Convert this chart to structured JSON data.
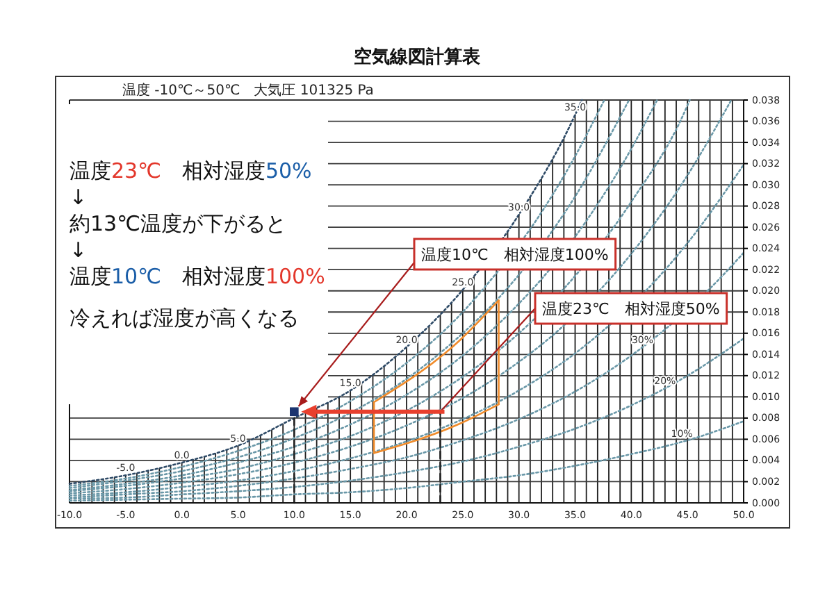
{
  "chart_data": {
    "type": "line",
    "title": "空気線図計算表",
    "subtitle": "温度 -10℃～50℃　大気圧 101325 Pa",
    "xlim": [
      -10,
      50
    ],
    "xticks": [
      {
        "value": -10,
        "label": "-10.0"
      },
      {
        "value": -9,
        "label": null
      },
      {
        "value": -8,
        "label": null
      },
      {
        "value": -7,
        "label": null
      },
      {
        "value": -6,
        "label": null
      },
      {
        "value": -5,
        "label": "-5.0"
      },
      {
        "value": -4,
        "label": null
      },
      {
        "value": -3,
        "label": null
      },
      {
        "value": -2,
        "label": null
      },
      {
        "value": -1,
        "label": null
      },
      {
        "value": 0,
        "label": "0.0"
      },
      {
        "value": 1,
        "label": null
      },
      {
        "value": 2,
        "label": null
      },
      {
        "value": 3,
        "label": null
      },
      {
        "value": 4,
        "label": null
      },
      {
        "value": 5,
        "label": "5.0"
      },
      {
        "value": 6,
        "label": null
      },
      {
        "value": 7,
        "label": null
      },
      {
        "value": 8,
        "label": null
      },
      {
        "value": 9,
        "label": null
      },
      {
        "value": 10,
        "label": "10.0"
      },
      {
        "value": 11,
        "label": null
      },
      {
        "value": 12,
        "label": null
      },
      {
        "value": 13,
        "label": null
      },
      {
        "value": 14,
        "label": null
      },
      {
        "value": 15,
        "label": "15.0"
      },
      {
        "value": 16,
        "label": null
      },
      {
        "value": 17,
        "label": null
      },
      {
        "value": 18,
        "label": null
      },
      {
        "value": 19,
        "label": null
      },
      {
        "value": 20,
        "label": "20.0"
      },
      {
        "value": 21,
        "label": null
      },
      {
        "value": 22,
        "label": null
      },
      {
        "value": 23,
        "label": null
      },
      {
        "value": 24,
        "label": null
      },
      {
        "value": 25,
        "label": "25.0"
      },
      {
        "value": 26,
        "label": null
      },
      {
        "value": 27,
        "label": null
      },
      {
        "value": 28,
        "label": null
      },
      {
        "value": 29,
        "label": null
      },
      {
        "value": 30,
        "label": "30.0"
      },
      {
        "value": 31,
        "label": null
      },
      {
        "value": 32,
        "label": null
      },
      {
        "value": 33,
        "label": null
      },
      {
        "value": 34,
        "label": null
      },
      {
        "value": 35,
        "label": "35.0"
      },
      {
        "value": 36,
        "label": null
      },
      {
        "value": 37,
        "label": null
      },
      {
        "value": 38,
        "label": null
      },
      {
        "value": 39,
        "label": null
      },
      {
        "value": 40,
        "label": "40.0"
      },
      {
        "value": 41,
        "label": null
      },
      {
        "value": 42,
        "label": null
      },
      {
        "value": 43,
        "label": null
      },
      {
        "value": 44,
        "label": null
      },
      {
        "value": 45,
        "label": "45.0"
      },
      {
        "value": 46,
        "label": null
      },
      {
        "value": 47,
        "label": null
      },
      {
        "value": 48,
        "label": null
      },
      {
        "value": 49,
        "label": null
      },
      {
        "value": 50,
        "label": "50.0"
      }
    ],
    "ylim": [
      0,
      0.038
    ],
    "yticks": [
      {
        "value": 0,
        "label": "0.000"
      },
      {
        "value": 0.002,
        "label": "0.002"
      },
      {
        "value": 0.004,
        "label": "0.004"
      },
      {
        "value": 0.006,
        "label": "0.006"
      },
      {
        "value": 0.008,
        "label": "0.008"
      },
      {
        "value": 0.01,
        "label": "0.010"
      },
      {
        "value": 0.012,
        "label": "0.012"
      },
      {
        "value": 0.014,
        "label": "0.014"
      },
      {
        "value": 0.016,
        "label": "0.016"
      },
      {
        "value": 0.018,
        "label": "0.018"
      },
      {
        "value": 0.02,
        "label": "0.020"
      },
      {
        "value": 0.022,
        "label": "0.022"
      },
      {
        "value": 0.024,
        "label": "0.024"
      },
      {
        "value": 0.026,
        "label": "0.026"
      },
      {
        "value": 0.028,
        "label": "0.028"
      },
      {
        "value": 0.03,
        "label": "0.030"
      },
      {
        "value": 0.032,
        "label": "0.032"
      },
      {
        "value": 0.034,
        "label": "0.034"
      },
      {
        "value": 0.036,
        "label": "0.036"
      },
      {
        "value": 0.038,
        "label": "0.038"
      }
    ],
    "grid": true,
    "line_style": "dotted",
    "series": [
      {
        "color": "#2e4a66",
        "x": [
          -10,
          -5,
          0,
          5,
          10,
          15,
          20,
          25,
          30,
          35,
          35.6
        ],
        "values": [
          0.0018,
          0.0026,
          0.0038,
          0.0054,
          0.008,
          0.0106,
          0.0147,
          0.0201,
          0.0272,
          0.0366,
          0.038
        ]
      },
      {
        "color": "#6a98a8",
        "x": [
          -10,
          -5,
          0,
          5,
          10,
          15,
          20,
          25,
          27,
          32,
          35,
          37.6
        ],
        "values": [
          0.0016,
          0.0023,
          0.0034,
          0.0049,
          0.0069,
          0.0096,
          0.0132,
          0.018,
          0.0204,
          0.0274,
          0.0327,
          0.038
        ]
      },
      {
        "color": "#6a98a8",
        "x": [
          -10,
          -5,
          0,
          5,
          10,
          15,
          20,
          25,
          28,
          33,
          35,
          39.8
        ],
        "values": [
          0.0014,
          0.0021,
          0.003,
          0.0043,
          0.0061,
          0.0085,
          0.0117,
          0.016,
          0.0191,
          0.0257,
          0.0289,
          0.038
        ]
      },
      {
        "color": "#6a98a8",
        "x": [
          -10,
          -5,
          0,
          5,
          10,
          15,
          20,
          25,
          30,
          32,
          36,
          40,
          42.3
        ],
        "values": [
          0.0012,
          0.0018,
          0.0026,
          0.0038,
          0.0053,
          0.0074,
          0.0102,
          0.0139,
          0.0188,
          0.0211,
          0.0266,
          0.0334,
          0.038
        ]
      },
      {
        "color": "#6a98a8",
        "x": [
          -10,
          -5,
          0,
          5,
          10,
          15,
          20,
          25,
          30,
          34.5,
          40,
          45,
          45.2
        ],
        "values": [
          0.0011,
          0.0016,
          0.0023,
          0.0032,
          0.0046,
          0.0063,
          0.0087,
          0.0119,
          0.016,
          0.0208,
          0.0284,
          0.0375,
          0.038
        ]
      },
      {
        "color": "#6a98a8",
        "x": [
          -10,
          -5,
          0,
          5,
          10,
          15,
          20,
          25,
          30,
          33,
          40,
          45,
          48.9
        ],
        "values": [
          0.0009,
          0.0013,
          0.0019,
          0.0027,
          0.0038,
          0.0053,
          0.0073,
          0.0099,
          0.0133,
          0.0158,
          0.0235,
          0.0309,
          0.038
        ]
      },
      {
        "color": "#6a98a8",
        "x": [
          -10,
          -5,
          0,
          5,
          10,
          15,
          20,
          25,
          30,
          35,
          37,
          42,
          45,
          50
        ],
        "values": [
          0.0007,
          0.001,
          0.0015,
          0.0021,
          0.003,
          0.0042,
          0.0058,
          0.0079,
          0.0106,
          0.0141,
          0.0158,
          0.0208,
          0.0245,
          0.0319
        ]
      },
      {
        "color": "#6a98a8",
        "x": [
          -10,
          -5,
          0,
          5,
          10,
          15,
          20,
          25,
          30,
          35,
          40,
          42,
          48,
          50
        ],
        "values": [
          0.0005,
          0.0008,
          0.0011,
          0.0016,
          0.0023,
          0.0032,
          0.0043,
          0.0059,
          0.0079,
          0.0105,
          0.0139,
          0.0155,
          0.0213,
          0.0236
        ]
      },
      {
        "color": "#6a98a8",
        "x": [
          -10,
          -5,
          0,
          5,
          10,
          15,
          20,
          25,
          30,
          35,
          40,
          45,
          50
        ],
        "values": [
          0.0004,
          0.0005,
          0.0008,
          0.0011,
          0.0015,
          0.0021,
          0.0029,
          0.0039,
          0.0053,
          0.007,
          0.0092,
          0.012,
          0.0155
        ]
      },
      {
        "color": "#6a98a8",
        "x": [
          -10,
          -5,
          0,
          5,
          10,
          15,
          20,
          25,
          30,
          35,
          40,
          45,
          50
        ],
        "values": [
          0.0002,
          0.0003,
          0.0004,
          0.0005,
          0.0008,
          0.001,
          0.0014,
          0.002,
          0.0026,
          0.0035,
          0.0046,
          0.0059,
          0.0077
        ]
      },
      {
        "color": "#f08c2c",
        "line_style": "solid",
        "x": [
          17.1,
          24.8,
          28.2
        ],
        "values": [
          0.0095,
          0.0154,
          0.0191
        ]
      },
      {
        "color": "#f08c2c",
        "line_style": "solid",
        "x": [
          17.1,
          24.8,
          28.2
        ],
        "values": [
          0.0047,
          0.0075,
          0.0093
        ]
      },
      {
        "color": "#f08c2c",
        "line_style": "solid",
        "x": [
          17.1,
          17.1
        ],
        "values": [
          0.0047,
          0.0095
        ]
      },
      {
        "color": "#f08c2c",
        "line_style": "solid",
        "x": [
          28.2,
          28.2
        ],
        "values": [
          0.0093,
          0.0191
        ]
      },
      {
        "color": "#222222",
        "line_style": "dashed",
        "x": [
          10,
          10
        ],
        "values": [
          0,
          0.0086
        ]
      },
      {
        "color": "#222222",
        "line_style": "dashed",
        "x": [
          23,
          23
        ],
        "values": [
          0,
          0.0086
        ]
      },
      {
        "type": "scatter",
        "color": "#1c3570",
        "marker": "square",
        "x": [
          10
        ],
        "values": [
          0.0086
        ]
      }
    ],
    "annotations": [
      "温度23℃　相対湿度50%",
      "↓",
      "約13℃温度が下がると",
      "↓",
      "温度10℃　相対湿度100%",
      "冷えれば湿度が高くなる",
      {
        "text": "温度10℃　相対湿度100%",
        "x": 10,
        "y": 0.0086
      },
      {
        "text": "温度23℃　相対湿度50%",
        "x": 23,
        "y": 0.0086
      },
      {
        "text": "-5.0",
        "x": -5,
        "y": 0.0026
      },
      {
        "text": "0.0",
        "x": 0,
        "y": 0.0038
      },
      {
        "text": "5.0",
        "x": 5,
        "y": 0.0054
      },
      {
        "text": "15.0",
        "x": 15,
        "y": 0.0106
      },
      {
        "text": "20.0",
        "x": 20,
        "y": 0.0147
      },
      {
        "text": "25.0",
        "x": 25,
        "y": 0.0201
      },
      {
        "text": "30.0",
        "x": 30,
        "y": 0.0272
      },
      {
        "text": "35.0",
        "x": 35,
        "y": 0.0366
      },
      {
        "text": "30%",
        "x": 41,
        "y": 0.0147
      },
      {
        "text": "20%",
        "x": 43,
        "y": 0.0108
      },
      {
        "text": "10%",
        "x": 44.5,
        "y": 0.0058
      }
    ]
  }
}
